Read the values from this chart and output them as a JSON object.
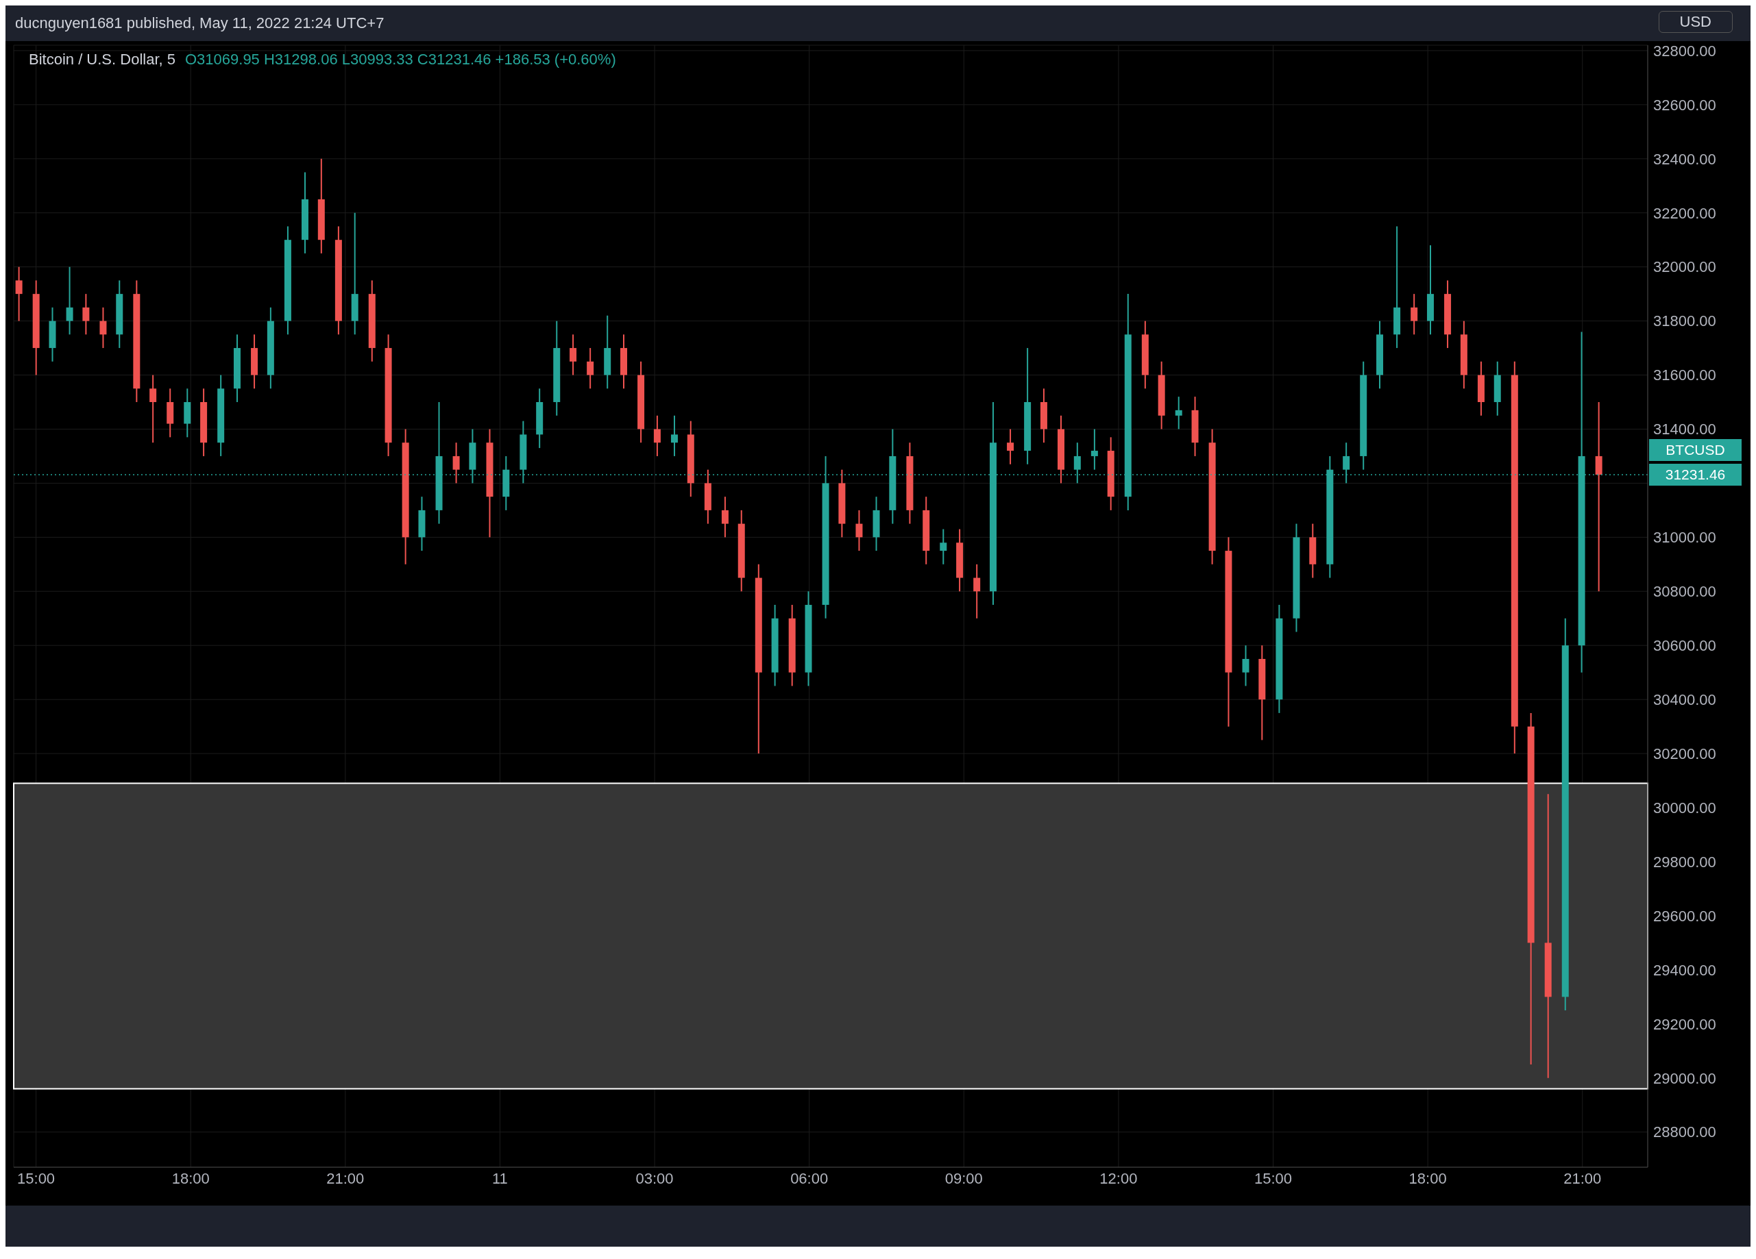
{
  "chart_data": {
    "type": "candlestick",
    "title": "Bitcoin / U.S. Dollar, 5",
    "ylabel": "USD",
    "annotations": [
      "ducnguyen1681 published, May 11, 2022 21:24 UTC+7",
      "O31069.95 H31298.06 L30993.33 C31231.46 +186.53 (+0.60%)",
      "31231.46"
    ],
    "x": [
      "2022-05-10T14:40",
      "2022-05-10T15:00",
      "2022-05-10T15:19",
      "2022-05-10T15:39",
      "2022-05-10T15:58",
      "2022-05-10T16:18",
      "2022-05-10T16:37",
      "2022-05-10T16:57",
      "2022-05-10T17:16",
      "2022-05-10T17:36",
      "2022-05-10T17:56",
      "2022-05-10T18:15",
      "2022-05-10T18:35",
      "2022-05-10T18:54",
      "2022-05-10T19:14",
      "2022-05-10T19:33",
      "2022-05-10T19:53",
      "2022-05-10T20:13",
      "2022-05-10T20:32",
      "2022-05-10T20:52",
      "2022-05-10T21:11",
      "2022-05-10T21:31",
      "2022-05-10T21:50",
      "2022-05-10T22:10",
      "2022-05-10T22:29",
      "2022-05-10T22:49",
      "2022-05-10T23:09",
      "2022-05-10T23:28",
      "2022-05-10T23:48",
      "2022-05-11T00:07",
      "2022-05-11T00:27",
      "2022-05-11T00:46",
      "2022-05-11T01:06",
      "2022-05-11T01:25",
      "2022-05-11T01:45",
      "2022-05-11T02:05",
      "2022-05-11T02:24",
      "2022-05-11T02:44",
      "2022-05-11T03:03",
      "2022-05-11T03:23",
      "2022-05-11T03:42",
      "2022-05-11T04:02",
      "2022-05-11T04:22",
      "2022-05-11T04:41",
      "2022-05-11T05:01",
      "2022-05-11T05:20",
      "2022-05-11T05:40",
      "2022-05-11T05:59",
      "2022-05-11T06:19",
      "2022-05-11T06:38",
      "2022-05-11T06:58",
      "2022-05-11T07:18",
      "2022-05-11T07:37",
      "2022-05-11T07:57",
      "2022-05-11T08:16",
      "2022-05-11T08:36",
      "2022-05-11T08:55",
      "2022-05-11T09:15",
      "2022-05-11T09:34",
      "2022-05-11T09:54",
      "2022-05-11T10:14",
      "2022-05-11T10:33",
      "2022-05-11T10:53",
      "2022-05-11T11:12",
      "2022-05-11T11:32",
      "2022-05-11T11:51",
      "2022-05-11T12:11",
      "2022-05-11T12:31",
      "2022-05-11T12:50",
      "2022-05-11T13:10",
      "2022-05-11T13:29",
      "2022-05-11T13:49",
      "2022-05-11T14:08",
      "2022-05-11T14:28",
      "2022-05-11T14:47",
      "2022-05-11T15:07",
      "2022-05-11T15:27",
      "2022-05-11T15:46",
      "2022-05-11T16:06",
      "2022-05-11T16:25",
      "2022-05-11T16:45",
      "2022-05-11T17:04",
      "2022-05-11T17:24",
      "2022-05-11T17:44",
      "2022-05-11T18:03",
      "2022-05-11T18:23",
      "2022-05-11T18:42",
      "2022-05-11T19:02",
      "2022-05-11T19:21",
      "2022-05-11T19:41",
      "2022-05-11T20:00",
      "2022-05-11T20:20",
      "2022-05-11T20:40",
      "2022-05-11T20:59",
      "2022-05-11T21:19"
    ],
    "ohlc": [
      [
        31950,
        32000,
        31800,
        31900
      ],
      [
        31900,
        31950,
        31600,
        31700
      ],
      [
        31700,
        31850,
        31650,
        31800
      ],
      [
        31800,
        32000,
        31750,
        31850
      ],
      [
        31850,
        31900,
        31750,
        31800
      ],
      [
        31800,
        31850,
        31700,
        31750
      ],
      [
        31750,
        31950,
        31700,
        31900
      ],
      [
        31900,
        31950,
        31500,
        31550
      ],
      [
        31550,
        31600,
        31350,
        31500
      ],
      [
        31500,
        31550,
        31370,
        31420
      ],
      [
        31420,
        31550,
        31370,
        31500
      ],
      [
        31500,
        31550,
        31300,
        31350
      ],
      [
        31350,
        31600,
        31300,
        31550
      ],
      [
        31550,
        31750,
        31500,
        31700
      ],
      [
        31700,
        31750,
        31550,
        31600
      ],
      [
        31600,
        31850,
        31550,
        31800
      ],
      [
        31800,
        32150,
        31750,
        32100
      ],
      [
        32100,
        32350,
        32050,
        32250
      ],
      [
        32250,
        32400,
        32050,
        32100
      ],
      [
        32100,
        32150,
        31750,
        31800
      ],
      [
        31800,
        32200,
        31750,
        31900
      ],
      [
        31900,
        31950,
        31650,
        31700
      ],
      [
        31700,
        31750,
        31300,
        31350
      ],
      [
        31350,
        31400,
        30900,
        31000
      ],
      [
        31000,
        31150,
        30950,
        31100
      ],
      [
        31100,
        31500,
        31050,
        31300
      ],
      [
        31300,
        31350,
        31200,
        31250
      ],
      [
        31250,
        31400,
        31200,
        31350
      ],
      [
        31350,
        31400,
        31000,
        31150
      ],
      [
        31150,
        31300,
        31100,
        31250
      ],
      [
        31250,
        31430,
        31200,
        31380
      ],
      [
        31380,
        31550,
        31330,
        31500
      ],
      [
        31500,
        31800,
        31450,
        31700
      ],
      [
        31700,
        31750,
        31600,
        31650
      ],
      [
        31650,
        31700,
        31550,
        31600
      ],
      [
        31600,
        31820,
        31550,
        31700
      ],
      [
        31700,
        31750,
        31550,
        31600
      ],
      [
        31600,
        31650,
        31350,
        31400
      ],
      [
        31400,
        31450,
        31300,
        31350
      ],
      [
        31350,
        31450,
        31300,
        31380
      ],
      [
        31380,
        31430,
        31150,
        31200
      ],
      [
        31200,
        31250,
        31050,
        31100
      ],
      [
        31100,
        31150,
        31000,
        31050
      ],
      [
        31050,
        31100,
        30800,
        30850
      ],
      [
        30850,
        30900,
        30200,
        30500
      ],
      [
        30500,
        30750,
        30450,
        30700
      ],
      [
        30700,
        30750,
        30450,
        30500
      ],
      [
        30500,
        30800,
        30450,
        30750
      ],
      [
        30750,
        31300,
        30700,
        31200
      ],
      [
        31200,
        31250,
        31000,
        31050
      ],
      [
        31050,
        31100,
        30950,
        31000
      ],
      [
        31000,
        31150,
        30950,
        31100
      ],
      [
        31100,
        31400,
        31050,
        31300
      ],
      [
        31300,
        31350,
        31050,
        31100
      ],
      [
        31100,
        31150,
        30900,
        30950
      ],
      [
        30950,
        31030,
        30900,
        30980
      ],
      [
        30980,
        31030,
        30800,
        30850
      ],
      [
        30850,
        30900,
        30700,
        30800
      ],
      [
        30800,
        31500,
        30750,
        31350
      ],
      [
        31350,
        31400,
        31270,
        31320
      ],
      [
        31320,
        31700,
        31270,
        31500
      ],
      [
        31500,
        31550,
        31350,
        31400
      ],
      [
        31400,
        31450,
        31200,
        31250
      ],
      [
        31250,
        31350,
        31200,
        31300
      ],
      [
        31300,
        31400,
        31250,
        31320
      ],
      [
        31320,
        31370,
        31100,
        31150
      ],
      [
        31150,
        31900,
        31100,
        31750
      ],
      [
        31750,
        31800,
        31550,
        31600
      ],
      [
        31600,
        31650,
        31400,
        31450
      ],
      [
        31450,
        31520,
        31400,
        31470
      ],
      [
        31470,
        31520,
        31300,
        31350
      ],
      [
        31350,
        31400,
        30900,
        30950
      ],
      [
        30950,
        31000,
        30300,
        30500
      ],
      [
        30500,
        30600,
        30450,
        30550
      ],
      [
        30550,
        30600,
        30250,
        30400
      ],
      [
        30400,
        30750,
        30350,
        30700
      ],
      [
        30700,
        31050,
        30650,
        31000
      ],
      [
        31000,
        31050,
        30850,
        30900
      ],
      [
        30900,
        31300,
        30850,
        31250
      ],
      [
        31250,
        31350,
        31200,
        31300
      ],
      [
        31300,
        31650,
        31250,
        31600
      ],
      [
        31600,
        31800,
        31550,
        31750
      ],
      [
        31750,
        32150,
        31700,
        31850
      ],
      [
        31850,
        31900,
        31750,
        31800
      ],
      [
        31800,
        32080,
        31750,
        31900
      ],
      [
        31900,
        31950,
        31700,
        31750
      ],
      [
        31750,
        31800,
        31550,
        31600
      ],
      [
        31600,
        31650,
        31450,
        31500
      ],
      [
        31500,
        31650,
        31450,
        31600
      ],
      [
        31600,
        31650,
        30200,
        30300
      ],
      [
        30300,
        30350,
        29050,
        29500
      ],
      [
        29500,
        30050,
        29000,
        29300
      ],
      [
        29300,
        30700,
        29250,
        30600
      ],
      [
        30600,
        31760,
        30500,
        31300
      ],
      [
        31300,
        31500,
        30800,
        31231.46
      ]
    ],
    "colors": [
      "#ef5350",
      "#ef5350",
      "#26a69a",
      "#26a69a",
      "#ef5350",
      "#ef5350",
      "#26a69a",
      "#ef5350",
      "#ef5350",
      "#ef5350",
      "#26a69a",
      "#ef5350",
      "#26a69a",
      "#26a69a",
      "#ef5350",
      "#26a69a",
      "#26a69a",
      "#26a69a",
      "#ef5350",
      "#ef5350",
      "#26a69a",
      "#ef5350",
      "#ef5350",
      "#ef5350",
      "#26a69a",
      "#26a69a",
      "#ef5350",
      "#26a69a",
      "#ef5350",
      "#26a69a",
      "#26a69a",
      "#26a69a",
      "#26a69a",
      "#ef5350",
      "#ef5350",
      "#26a69a",
      "#ef5350",
      "#ef5350",
      "#ef5350",
      "#26a69a",
      "#ef5350",
      "#ef5350",
      "#ef5350",
      "#ef5350",
      "#ef5350",
      "#26a69a",
      "#ef5350",
      "#26a69a",
      "#26a69a",
      "#ef5350",
      "#ef5350",
      "#26a69a",
      "#26a69a",
      "#ef5350",
      "#ef5350",
      "#26a69a",
      "#ef5350",
      "#ef5350",
      "#26a69a",
      "#ef5350",
      "#26a69a",
      "#ef5350",
      "#ef5350",
      "#26a69a",
      "#26a69a",
      "#ef5350",
      "#26a69a",
      "#ef5350",
      "#ef5350",
      "#26a69a",
      "#ef5350",
      "#ef5350",
      "#ef5350",
      "#26a69a",
      "#ef5350",
      "#26a69a",
      "#26a69a",
      "#ef5350",
      "#26a69a",
      "#26a69a",
      "#26a69a",
      "#26a69a",
      "#26a69a",
      "#ef5350",
      "#26a69a",
      "#ef5350",
      "#ef5350",
      "#ef5350",
      "#26a69a",
      "#ef5350",
      "#ef5350",
      "#ef5350",
      "#26a69a",
      "#26a69a",
      "#ef5350"
    ],
    "xlim": [
      "2022-05-10T14:34",
      "2022-05-11T22:16"
    ],
    "xticks": [
      {
        "value": "2022-05-10T15:00",
        "label": "15:00"
      },
      {
        "value": "2022-05-10T18:00",
        "label": "18:00"
      },
      {
        "value": "2022-05-10T21:00",
        "label": "21:00"
      },
      {
        "value": "2022-05-11T00:00",
        "label": "11"
      },
      {
        "value": "2022-05-11T03:00",
        "label": "03:00"
      },
      {
        "value": "2022-05-11T06:00",
        "label": "06:00"
      },
      {
        "value": "2022-05-11T09:00",
        "label": "09:00"
      },
      {
        "value": "2022-05-11T12:00",
        "label": "12:00"
      },
      {
        "value": "2022-05-11T15:00",
        "label": "15:00"
      },
      {
        "value": "2022-05-11T18:00",
        "label": "18:00"
      },
      {
        "value": "2022-05-11T21:00",
        "label": "21:00"
      }
    ],
    "ylim": [
      28670,
      32820
    ],
    "yticks": [
      {
        "value": 28800,
        "label": "28800.00"
      },
      {
        "value": 29000,
        "label": "29000.00"
      },
      {
        "value": 29200,
        "label": "29200.00"
      },
      {
        "value": 29400,
        "label": "29400.00"
      },
      {
        "value": 29600,
        "label": "29600.00"
      },
      {
        "value": 29800,
        "label": "29800.00"
      },
      {
        "value": 30000,
        "label": "30000.00"
      },
      {
        "value": 30200,
        "label": "30200.00"
      },
      {
        "value": 30400,
        "label": "30400.00"
      },
      {
        "value": 30600,
        "label": "30600.00"
      },
      {
        "value": 30800,
        "label": "30800.00"
      },
      {
        "value": 31000,
        "label": "31000.00"
      },
      {
        "value": 31200,
        "label": null
      },
      {
        "value": 31400,
        "label": "31400.00"
      },
      {
        "value": 31600,
        "label": "31600.00"
      },
      {
        "value": 31800,
        "label": "31800.00"
      },
      {
        "value": 32000,
        "label": "32000.00"
      },
      {
        "value": 32200,
        "label": "32200.00"
      },
      {
        "value": 32400,
        "label": "32400.00"
      },
      {
        "value": 32600,
        "label": "32600.00"
      },
      {
        "value": 32800,
        "label": "32800.00"
      }
    ],
    "bands": [
      {
        "axis": "y",
        "from": 28960,
        "to": 30090,
        "color": "#363636"
      }
    ],
    "ref_lines": [
      {
        "axis": "y",
        "value": 31231.46,
        "label": "BTCUSD",
        "color": "#26a69a",
        "line_style": "dotted"
      }
    ],
    "grid": true
  }
}
